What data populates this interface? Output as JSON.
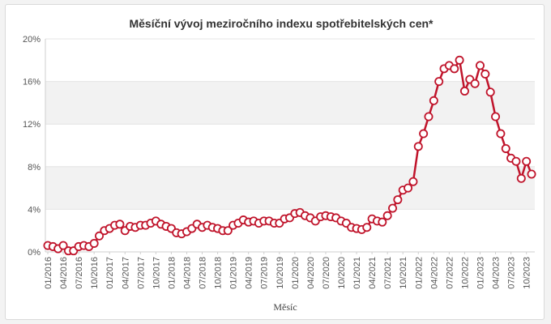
{
  "chart_data": {
    "type": "line",
    "title": "Měsíční vývoj meziročního indexu spotřebitelských cen*",
    "xlabel": "Měsíc",
    "ylabel": "",
    "ylim": [
      0,
      20
    ],
    "y_ticks": [
      "0%",
      "4%",
      "8%",
      "12%",
      "16%",
      "20%"
    ],
    "y_tick_values": [
      0,
      4,
      8,
      12,
      16,
      20
    ],
    "x_tick_labels": [
      "01/2016",
      "04/2016",
      "07/2016",
      "10/2016",
      "01/2017",
      "04/2017",
      "07/2017",
      "10/2017",
      "01/2018",
      "04/2018",
      "07/2018",
      "10/2018",
      "01/2019",
      "04/2019",
      "07/2019",
      "10/2019",
      "01/2020",
      "04/2020",
      "07/2020",
      "10/2020",
      "01/2021",
      "04/2021",
      "07/2021",
      "10/2021",
      "01/2022",
      "04/2022",
      "07/2022",
      "10/2022",
      "01/2023",
      "04/2023",
      "07/2023",
      "10/2023"
    ],
    "start_month": "01/2016",
    "values": [
      0.6,
      0.5,
      0.3,
      0.6,
      0.1,
      0.1,
      0.5,
      0.6,
      0.5,
      0.8,
      1.5,
      2.0,
      2.2,
      2.5,
      2.6,
      2.0,
      2.4,
      2.3,
      2.5,
      2.5,
      2.7,
      2.9,
      2.6,
      2.4,
      2.2,
      1.8,
      1.7,
      1.9,
      2.2,
      2.6,
      2.3,
      2.5,
      2.3,
      2.2,
      2.0,
      2.0,
      2.5,
      2.7,
      3.0,
      2.8,
      2.9,
      2.7,
      2.9,
      2.9,
      2.7,
      2.7,
      3.1,
      3.2,
      3.6,
      3.7,
      3.4,
      3.2,
      2.9,
      3.3,
      3.4,
      3.3,
      3.2,
      2.9,
      2.7,
      2.3,
      2.2,
      2.1,
      2.3,
      3.1,
      2.9,
      2.8,
      3.4,
      4.1,
      4.9,
      5.8,
      6.0,
      6.6,
      9.9,
      11.1,
      12.7,
      14.2,
      16.0,
      17.2,
      17.5,
      17.2,
      18.0,
      15.1,
      16.2,
      15.8,
      17.5,
      16.7,
      15.0,
      12.7,
      11.1,
      9.7,
      8.8,
      8.5,
      6.9,
      8.5,
      7.3
    ],
    "series_color": "#c0142b",
    "band_color": "#f2f2f2",
    "grid": true
  }
}
